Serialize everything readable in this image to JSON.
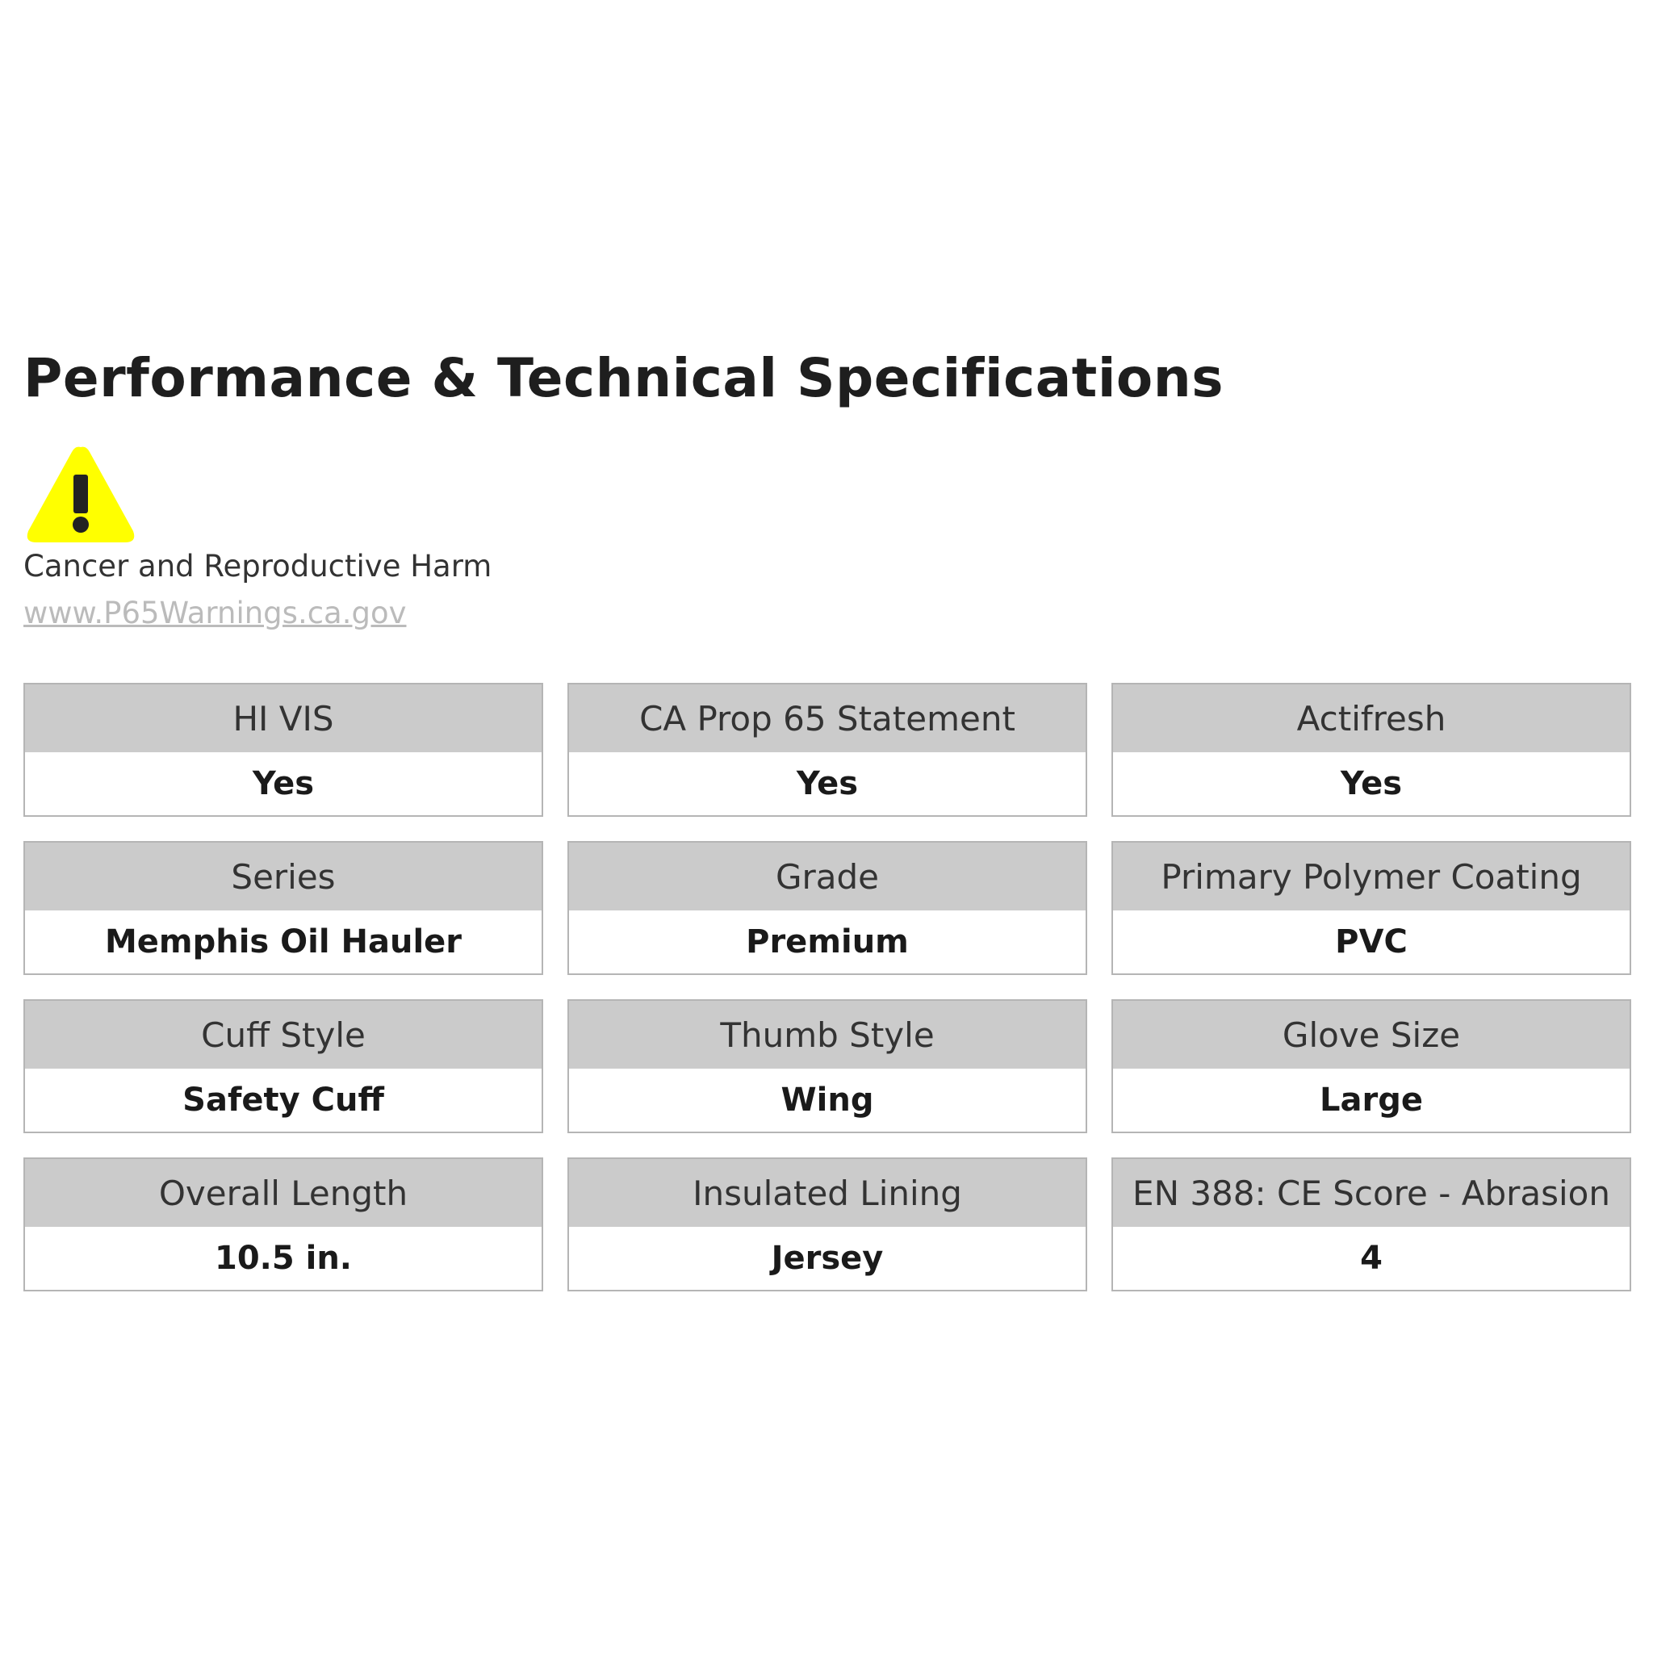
{
  "title": "Performance & Technical Specifications",
  "warning": {
    "icon": "warning-triangle-icon",
    "icon_color": "#ffff00",
    "text": "Cancer and Reproductive Harm",
    "link": "www.P65Warnings.ca.gov"
  },
  "colors": {
    "header_bg": "#cbcbcb",
    "border": "#b5b5b5"
  },
  "specs": [
    {
      "label": "HI VIS",
      "value": "Yes"
    },
    {
      "label": "CA Prop 65 Statement",
      "value": "Yes"
    },
    {
      "label": "Actifresh",
      "value": "Yes"
    },
    {
      "label": "Series",
      "value": "Memphis Oil Hauler"
    },
    {
      "label": "Grade",
      "value": "Premium"
    },
    {
      "label": "Primary Polymer Coating",
      "value": "PVC"
    },
    {
      "label": "Cuff Style",
      "value": "Safety Cuff"
    },
    {
      "label": "Thumb Style",
      "value": "Wing"
    },
    {
      "label": "Glove Size",
      "value": "Large"
    },
    {
      "label": "Overall Length",
      "value": "10.5 in."
    },
    {
      "label": "Insulated Lining",
      "value": "Jersey"
    },
    {
      "label": "EN 388: CE Score - Abrasion",
      "value": "4"
    }
  ]
}
